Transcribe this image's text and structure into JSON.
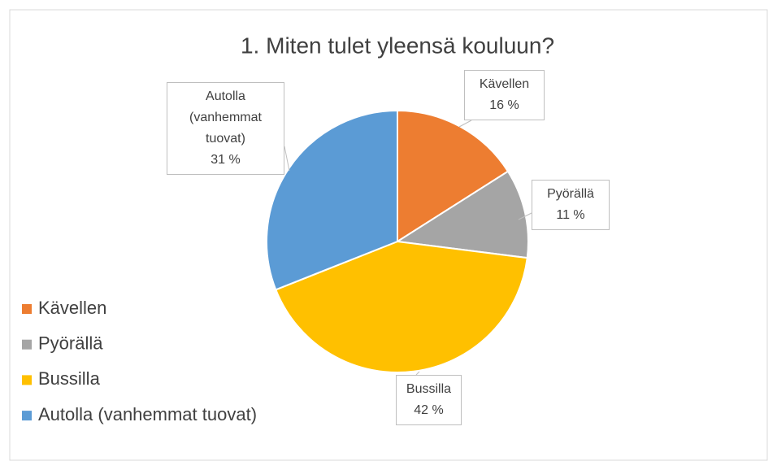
{
  "chart_data": {
    "type": "pie",
    "title": "1. Miten tulet yleensä kouluun?",
    "categories": [
      "Kävellen",
      "Pyörällä",
      "Bussilla",
      "Autolla (vanhemmat tuovat)"
    ],
    "values": [
      16,
      11,
      42,
      31
    ],
    "value_labels": [
      "16 %",
      "11 %",
      "42 %",
      "31 %"
    ],
    "colors": [
      "#ed7d31",
      "#a5a5a5",
      "#ffc000",
      "#5b9bd5"
    ],
    "legend": "left"
  }
}
